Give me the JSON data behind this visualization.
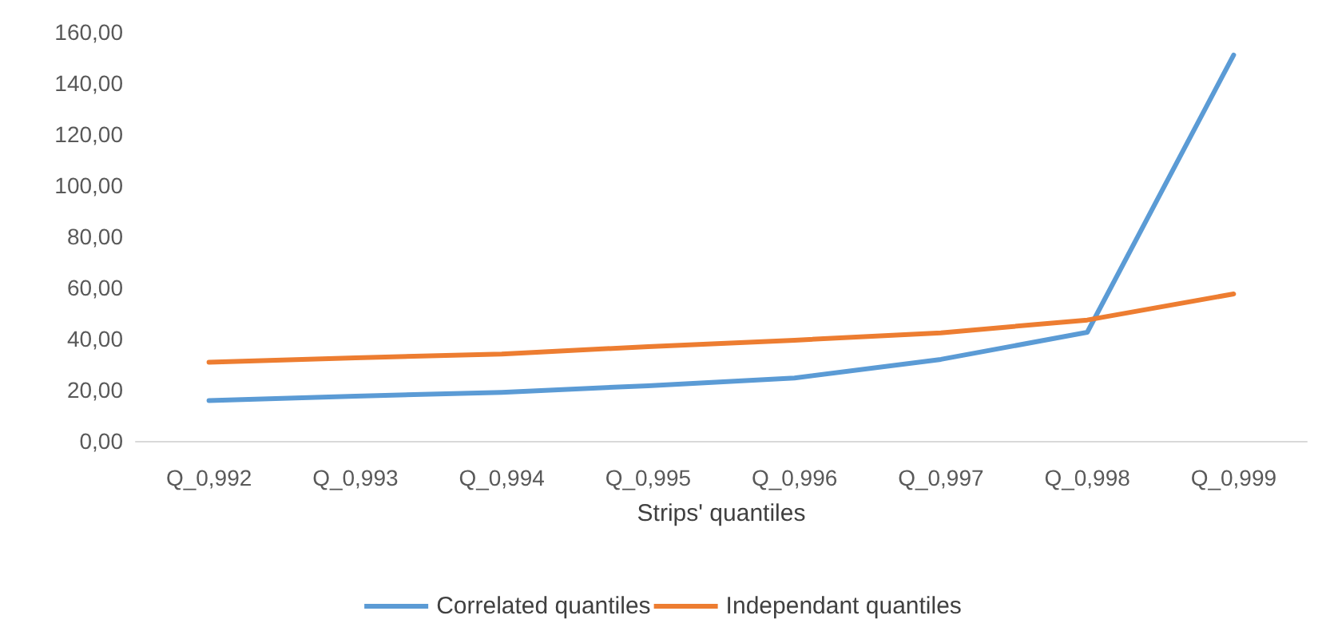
{
  "chart_data": {
    "type": "line",
    "xlabel": "Strips' quantiles",
    "categories": [
      "Q_0,992",
      "Q_0,993",
      "Q_0,994",
      "Q_0,995",
      "Q_0,996",
      "Q_0,997",
      "Q_0,998",
      "Q_0,999"
    ],
    "series": [
      {
        "name": "Correlated quantiles",
        "color": "#5b9bd5",
        "values": [
          15.8,
          17.5,
          19,
          21.6,
          24.6,
          31.9,
          42.5,
          151
        ]
      },
      {
        "name": "Independant quantiles",
        "color": "#ed7d31",
        "values": [
          30.8,
          32.5,
          34,
          36.9,
          39.4,
          42.3,
          47.3,
          57.5
        ]
      }
    ],
    "ylim": [
      0,
      160
    ],
    "yticks": [
      {
        "value": 0,
        "label": "0,00"
      },
      {
        "value": 20,
        "label": "20,00"
      },
      {
        "value": 40,
        "label": "40,00"
      },
      {
        "value": 60,
        "label": "60,00"
      },
      {
        "value": 80,
        "label": "80,00"
      },
      {
        "value": 100,
        "label": "100,00"
      },
      {
        "value": 120,
        "label": "120,00"
      },
      {
        "value": 140,
        "label": "140,00"
      },
      {
        "value": 160,
        "label": "160,00"
      }
    ],
    "grid": false,
    "legend": "bottom",
    "marker": "none",
    "line_style": "solid"
  }
}
